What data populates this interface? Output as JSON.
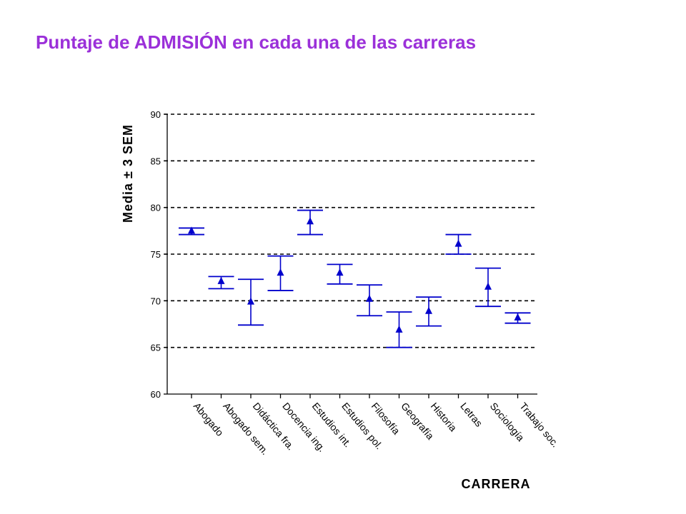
{
  "chart_data": {
    "type": "scatter",
    "title": "Puntaje de ADMISIÓN en cada una de las carreras",
    "xlabel": "CARRERA",
    "ylabel": "Media ± 3 SEM",
    "ylim": [
      60,
      90
    ],
    "yticks": [
      60,
      65,
      70,
      75,
      80,
      85,
      90
    ],
    "grid": true,
    "categories": [
      "Abogado",
      "Abogado sem.",
      "Didáctica fra.",
      "Docencia ing.",
      "Estudios int.",
      "Estudios pol.",
      "Filosofía",
      "Geografía",
      "Historia",
      "Letras",
      "Sociología",
      "Trabajo soc."
    ],
    "mean": [
      77.5,
      72.1,
      69.9,
      73.0,
      78.5,
      73.0,
      70.2,
      66.9,
      68.9,
      76.1,
      71.5,
      68.2
    ],
    "lower": [
      77.1,
      71.3,
      67.4,
      71.1,
      77.1,
      71.8,
      68.4,
      65.0,
      67.3,
      75.0,
      69.4,
      67.6
    ],
    "upper": [
      77.8,
      72.6,
      72.3,
      74.8,
      79.7,
      73.9,
      71.7,
      68.8,
      70.4,
      77.1,
      73.5,
      68.7
    ],
    "color": "#0000cc"
  }
}
